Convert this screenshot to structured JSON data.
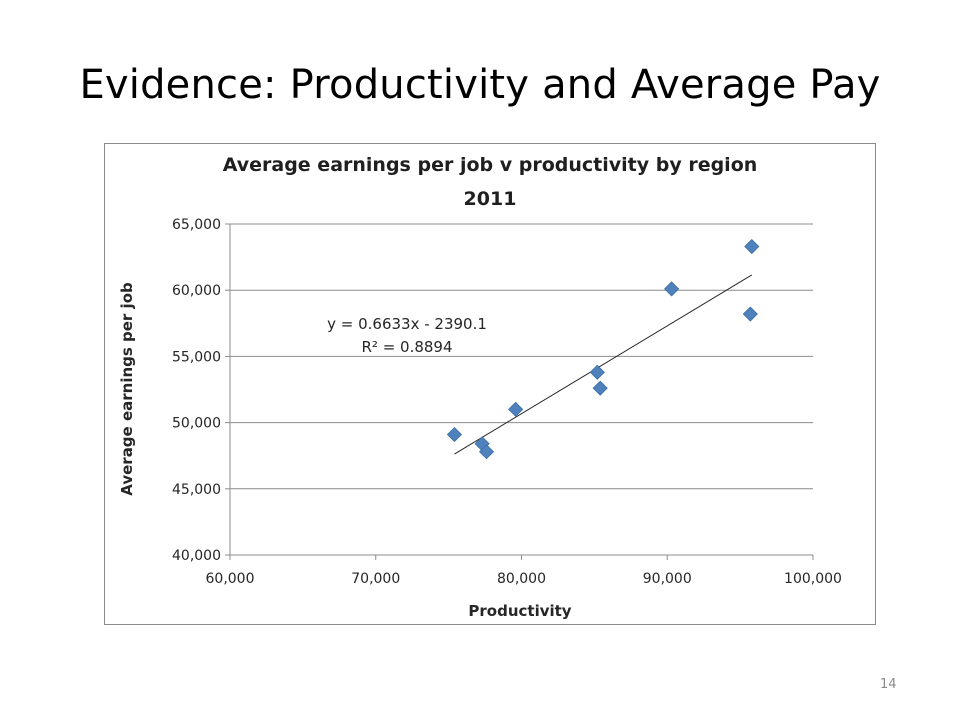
{
  "slide": {
    "title": "Evidence: Productivity and Average Pay",
    "page_number": "14"
  },
  "chart_data": {
    "type": "scatter",
    "title_line1": "Average earnings per job v productivity by region",
    "title_line2": "2011",
    "xlabel": "Productivity",
    "ylabel": "Average earnings per job",
    "xlim": [
      60000,
      100000
    ],
    "ylim": [
      40000,
      65000
    ],
    "xticks": [
      60000,
      70000,
      80000,
      90000,
      100000
    ],
    "yticks": [
      40000,
      45000,
      50000,
      55000,
      60000,
      65000
    ],
    "xtick_labels": [
      "60,000",
      "70,000",
      "80,000",
      "90,000",
      "100,000"
    ],
    "ytick_labels": [
      "40,000",
      "45,000",
      "50,000",
      "55,000",
      "60,000",
      "65,000"
    ],
    "grid": "horizontal",
    "marker": "diamond",
    "marker_color": "#4f81bd",
    "points": [
      {
        "x": 75400,
        "y": 49100
      },
      {
        "x": 77300,
        "y": 48400
      },
      {
        "x": 77600,
        "y": 47800
      },
      {
        "x": 79600,
        "y": 51000
      },
      {
        "x": 85200,
        "y": 53800
      },
      {
        "x": 85400,
        "y": 52600
      },
      {
        "x": 90300,
        "y": 60100
      },
      {
        "x": 95700,
        "y": 58200
      },
      {
        "x": 95800,
        "y": 63300
      }
    ],
    "trendline": {
      "type": "linear",
      "x_range": [
        75400,
        95800
      ],
      "slope": 0.6633,
      "intercept": -2390.1,
      "equation": "y = 0.6633x - 2390.1",
      "r_squared": "R² = 0.8894"
    }
  }
}
